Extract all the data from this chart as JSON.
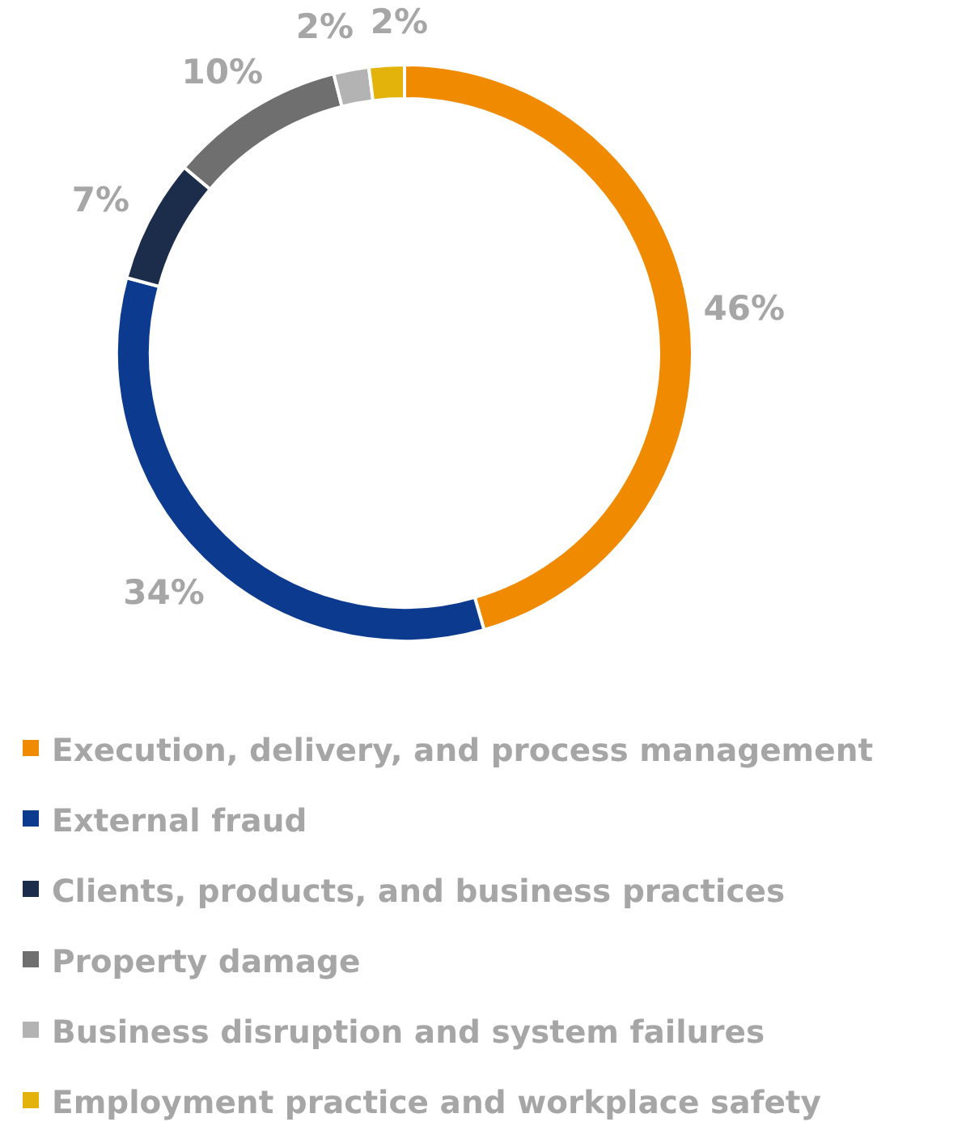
{
  "chart_data": {
    "type": "donut",
    "categories": [
      "Execution, delivery, and process management",
      "External fraud",
      "Clients, products, and business practices",
      "Property damage",
      "Business disruption and system failures",
      "Employment practice and workplace safety"
    ],
    "values": [
      46,
      34,
      7,
      10,
      2,
      2
    ],
    "colors": [
      "#f08a00",
      "#0b3a8e",
      "#1b2d4b",
      "#6f6f6f",
      "#b3b3b3",
      "#e3b30c"
    ],
    "value_labels": [
      "46%",
      "34%",
      "7%",
      "10%",
      "2%",
      "2%"
    ],
    "legend": "bottom"
  }
}
